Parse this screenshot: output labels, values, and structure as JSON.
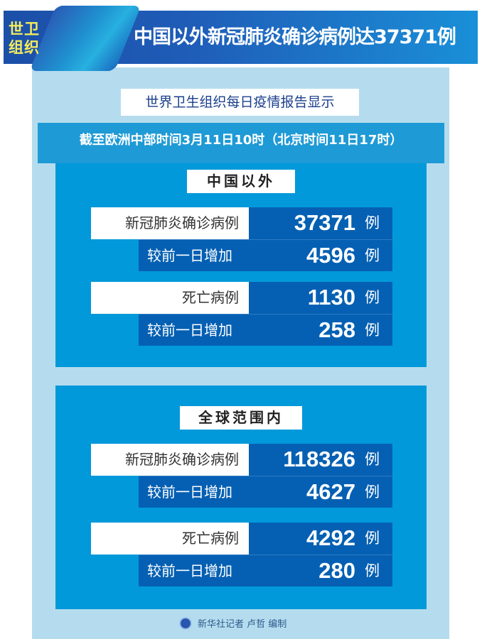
{
  "header": {
    "badge": "世卫组织",
    "title": "中国以外新冠肺炎确诊病例达37371例"
  },
  "subtitle": "世界卫生组织每日疫情报告显示",
  "date_line": "截至欧洲中部时间3月11日10时（北京时间11日17时）",
  "sections": [
    {
      "heading": "中国以外",
      "confirmed_label": "新冠肺炎确诊病例",
      "confirmed": "37371",
      "confirmed_inc_label": "较前一日增加",
      "confirmed_inc": "4596",
      "deaths_label": "死亡病例",
      "deaths": "1130",
      "deaths_inc_label": "较前一日增加",
      "deaths_inc": "258",
      "unit": "例"
    },
    {
      "heading": "全球范围内",
      "confirmed_label": "新冠肺炎确诊病例",
      "confirmed": "118326",
      "confirmed_inc_label": "较前一日增加",
      "confirmed_inc": "4627",
      "deaths_label": "死亡病例",
      "deaths": "4292",
      "deaths_inc_label": "较前一日增加",
      "deaths_inc": "280",
      "unit": "例"
    }
  ],
  "footer": {
    "credit": "新华社记者 卢哲 编制",
    "logo": "xinhua-logo"
  },
  "colors": {
    "dark_blue": "#0560b3",
    "mid_blue": "#0199da",
    "panel": "#b5dcee",
    "badge_text": "#f4ec5c"
  }
}
